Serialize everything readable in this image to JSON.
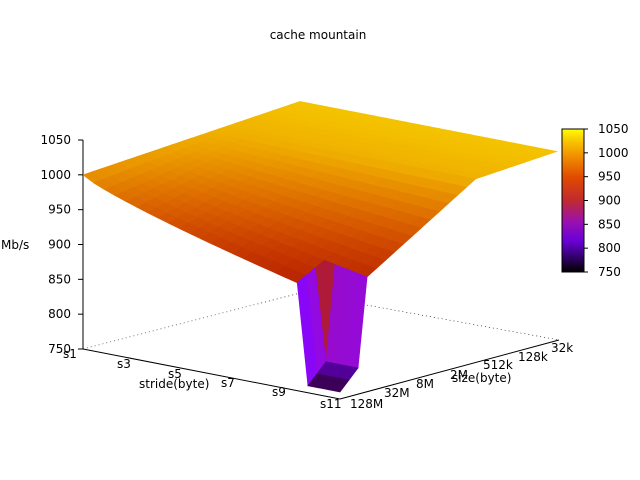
{
  "chart_data": {
    "type": "surface-3d",
    "title": "cache mountain",
    "zlabel": "Mb/s",
    "xlabel": "stride(byte)",
    "ylabel": "size(byte)",
    "zlim": [
      750,
      1050
    ],
    "z_ticks": [
      "750",
      "800",
      "850",
      "900",
      "950",
      "1000",
      "1050"
    ],
    "x_ticks": [
      "s1",
      "s3",
      "s5",
      "s7",
      "s9",
      "s11"
    ],
    "y_ticks": [
      "128M",
      "32M",
      "8M",
      "2M",
      "512k",
      "128k",
      "32k"
    ],
    "colorbar": {
      "ticks": [
        "750",
        "800",
        "850",
        "900",
        "950",
        "1000",
        "1050"
      ],
      "range": [
        750,
        1050
      ],
      "palette": "gnuplot"
    },
    "surface": {
      "description_values": {
        "plateau_level": 1000,
        "peak_level": 1040,
        "valley_min": 760
      }
    }
  }
}
